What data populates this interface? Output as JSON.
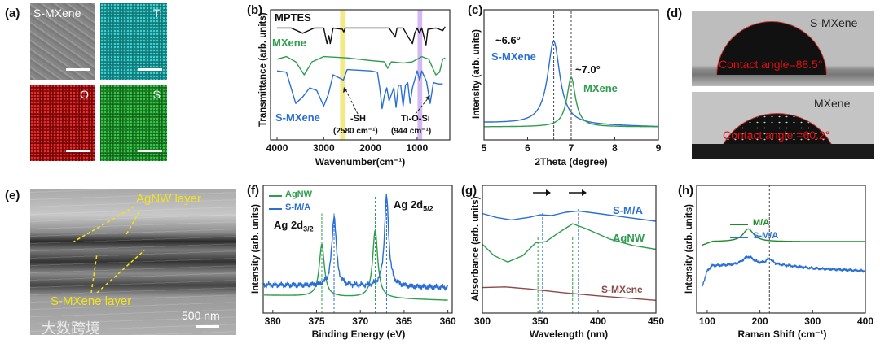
{
  "panel_labels": {
    "a": "(a)",
    "b": "(b)",
    "c": "(c)",
    "d": "(d)",
    "e": "(e)",
    "f": "(f)",
    "g": "(g)",
    "h": "(h)"
  },
  "images": {
    "a": {
      "tiles": [
        "S-MXene",
        "Ti",
        "O",
        "S"
      ],
      "colors": [
        "#8a8a8a",
        "#1fa8a8",
        "#b41414",
        "#1f9a2a"
      ]
    },
    "d": {
      "top": {
        "sample": "S-MXene",
        "angle_text": "Contact angle=88.5°"
      },
      "bottom": {
        "sample": "MXene",
        "angle_text": "Contact angle =60.2°"
      }
    },
    "e": {
      "agnw_label": "AgNW layer",
      "smxene_label": "S-MXene layer",
      "scale": "500 nm",
      "watermark": "大数跨境"
    }
  },
  "chart_data": [
    {
      "type": "line",
      "panel": "b",
      "xlabel": "Wavenumber(cm⁻¹)",
      "ylabel": "Transmittance (arb. units)",
      "xlim": [
        4140,
        300
      ],
      "ylim": [
        0,
        1
      ],
      "xticks": [
        4000,
        3000,
        2000,
        1000
      ],
      "bands": [
        {
          "from": 2650,
          "to": 2530,
          "color": "#f0e46a"
        },
        {
          "from": 990,
          "to": 890,
          "color": "#c9a6ee"
        }
      ],
      "annotations": [
        "MPTES",
        "MXene",
        "S-MXene",
        "-SH",
        "(2580 cm⁻¹)",
        "Ti-O-Si",
        "(944 cm⁻¹)"
      ],
      "series": [
        {
          "name": "MPTES",
          "color": "#111111",
          "points": [
            [
              4000,
              0.86
            ],
            [
              3700,
              0.86
            ],
            [
              3450,
              0.82
            ],
            [
              3200,
              0.86
            ],
            [
              3000,
              0.86
            ],
            [
              2930,
              0.74
            ],
            [
              2890,
              0.8
            ],
            [
              2860,
              0.74
            ],
            [
              2800,
              0.86
            ],
            [
              2600,
              0.85
            ],
            [
              2570,
              0.83
            ],
            [
              2540,
              0.86
            ],
            [
              1600,
              0.86
            ],
            [
              1470,
              0.79
            ],
            [
              1430,
              0.86
            ],
            [
              1300,
              0.86
            ],
            [
              1190,
              0.79
            ],
            [
              1100,
              0.74
            ],
            [
              1050,
              0.82
            ],
            [
              1000,
              0.86
            ],
            [
              950,
              0.82
            ],
            [
              900,
              0.86
            ],
            [
              810,
              0.73
            ],
            [
              770,
              0.85
            ],
            [
              600,
              0.86
            ],
            [
              450,
              0.84
            ],
            [
              400,
              0.87
            ]
          ]
        },
        {
          "name": "MXene",
          "color": "#2e9e4e",
          "points": [
            [
              4000,
              0.62
            ],
            [
              3800,
              0.64
            ],
            [
              3600,
              0.6
            ],
            [
              3420,
              0.5
            ],
            [
              3250,
              0.6
            ],
            [
              3000,
              0.64
            ],
            [
              2500,
              0.63
            ],
            [
              2000,
              0.61
            ],
            [
              1700,
              0.6
            ],
            [
              1630,
              0.55
            ],
            [
              1550,
              0.6
            ],
            [
              1300,
              0.59
            ],
            [
              1100,
              0.6
            ],
            [
              900,
              0.64
            ],
            [
              750,
              0.62
            ],
            [
              600,
              0.5
            ],
            [
              520,
              0.52
            ],
            [
              450,
              0.62
            ],
            [
              400,
              0.63
            ]
          ]
        },
        {
          "name": "S-MXene",
          "color": "#2a6fd6",
          "points": [
            [
              4000,
              0.53
            ],
            [
              3800,
              0.52
            ],
            [
              3600,
              0.28
            ],
            [
              3450,
              0.33
            ],
            [
              3300,
              0.4
            ],
            [
              3150,
              0.38
            ],
            [
              3000,
              0.26
            ],
            [
              2900,
              0.35
            ],
            [
              2800,
              0.5
            ],
            [
              2580,
              0.46
            ],
            [
              2500,
              0.54
            ],
            [
              2000,
              0.53
            ],
            [
              1850,
              0.52
            ],
            [
              1800,
              0.4
            ],
            [
              1750,
              0.24
            ],
            [
              1700,
              0.34
            ],
            [
              1650,
              0.4
            ],
            [
              1600,
              0.3
            ],
            [
              1500,
              0.4
            ],
            [
              1450,
              0.25
            ],
            [
              1400,
              0.42
            ],
            [
              1350,
              0.42
            ],
            [
              1300,
              0.26
            ],
            [
              1250,
              0.42
            ],
            [
              1200,
              0.44
            ],
            [
              1150,
              0.28
            ],
            [
              1100,
              0.4
            ],
            [
              1000,
              0.53
            ],
            [
              944,
              0.46
            ],
            [
              900,
              0.53
            ],
            [
              800,
              0.45
            ],
            [
              720,
              0.28
            ],
            [
              650,
              0.44
            ],
            [
              550,
              0.43
            ],
            [
              450,
              0.43
            ]
          ]
        }
      ]
    },
    {
      "type": "line",
      "panel": "c",
      "xlabel": "2Theta (degree)",
      "ylabel": "Intensity (arb. units)",
      "xlim": [
        5,
        9
      ],
      "ylim": [
        0,
        1
      ],
      "xticks": [
        5,
        6,
        7,
        8,
        9
      ],
      "vlines": [
        {
          "x": 6.6,
          "color": "#444444"
        },
        {
          "x": 7.0,
          "color": "#444444"
        }
      ],
      "annotations": [
        "~6.6°",
        "S-MXene",
        "~7.0°",
        "MXene"
      ],
      "series": [
        {
          "name": "S-MXene",
          "color": "#2a6fd6",
          "baseline": [
            [
              5,
              0.13
            ],
            [
              9,
              0.1
            ]
          ],
          "peaks": [
            {
              "center": 6.6,
              "height": 0.64,
              "hwhm": 0.17
            }
          ]
        },
        {
          "name": "MXene",
          "color": "#2e9e4e",
          "baseline": [
            [
              5,
              0.1
            ],
            [
              9,
              0.1
            ]
          ],
          "peaks": [
            {
              "center": 7.0,
              "height": 0.38,
              "hwhm": 0.12
            }
          ]
        }
      ]
    },
    {
      "type": "line",
      "panel": "f",
      "xlabel": "Binding Energy (eV)",
      "ylabel": "Intensity (arb. units)",
      "xlim": [
        381.1,
        359.5
      ],
      "ylim": [
        0,
        1
      ],
      "xticks": [
        380,
        375,
        370,
        365,
        360
      ],
      "legend": [
        "AgNW",
        "S-M/A"
      ],
      "annotations": [
        "Ag 2d",
        "3/2",
        "Ag 2d",
        "5/2"
      ],
      "vlines": [
        {
          "x": 374.4,
          "color": "#2e9e4e",
          "top": 0.78
        },
        {
          "x": 373.0,
          "color": "#2a6fd6",
          "top": 0.78
        },
        {
          "x": 368.3,
          "color": "#2e9e4e",
          "top": 0.92
        },
        {
          "x": 367.0,
          "color": "#2a6fd6",
          "top": 0.92
        }
      ],
      "series": [
        {
          "name": "AgNW",
          "color": "#2e9e4e",
          "baseline": [
            [
              381,
              0.14
            ],
            [
              369,
              0.12
            ],
            [
              360,
              0.1
            ]
          ],
          "peaks": [
            {
              "center": 374.4,
              "height": 0.41,
              "hwhm": 0.35
            },
            {
              "center": 368.3,
              "height": 0.53,
              "hwhm": 0.35
            }
          ]
        },
        {
          "name": "S-M/A",
          "color": "#2a6fd6",
          "noise": 0.025,
          "baseline": [
            [
              381,
              0.22
            ],
            [
              360,
              0.2
            ]
          ],
          "peaks": [
            {
              "center": 373.0,
              "height": 0.55,
              "hwhm": 0.3
            },
            {
              "center": 367.0,
              "height": 0.7,
              "hwhm": 0.3
            }
          ]
        }
      ]
    },
    {
      "type": "line",
      "panel": "g",
      "xlabel": "Wavelength (nm)",
      "ylabel": "Absorbance (arb. units)",
      "xlim": [
        300,
        450
      ],
      "ylim": [
        0,
        1
      ],
      "xticks": [
        300,
        350,
        400,
        450
      ],
      "annotations": [
        "S-M/A",
        "AgNW",
        "S-MXene"
      ],
      "vlines": [
        {
          "x": 348,
          "color": "#2e9e4e",
          "top": 0.6
        },
        {
          "x": 352,
          "color": "#2a6fd6",
          "top": 0.8
        },
        {
          "x": 378,
          "color": "#2e9e4e",
          "top": 0.6
        },
        {
          "x": 383,
          "color": "#2a6fd6",
          "top": 0.82
        }
      ],
      "series": [
        {
          "name": "S-M/A",
          "color": "#2a6fd6",
          "points": [
            [
              300,
              0.78
            ],
            [
              312,
              0.75
            ],
            [
              325,
              0.73
            ],
            [
              340,
              0.75
            ],
            [
              350,
              0.77
            ],
            [
              360,
              0.765
            ],
            [
              372,
              0.79
            ],
            [
              383,
              0.8
            ],
            [
              400,
              0.78
            ],
            [
              425,
              0.75
            ],
            [
              450,
              0.72
            ]
          ]
        },
        {
          "name": "AgNW",
          "color": "#2e9e4e",
          "points": [
            [
              300,
              0.54
            ],
            [
              310,
              0.45
            ],
            [
              322,
              0.4
            ],
            [
              335,
              0.45
            ],
            [
              346,
              0.55
            ],
            [
              355,
              0.56
            ],
            [
              366,
              0.63
            ],
            [
              378,
              0.7
            ],
            [
              390,
              0.66
            ],
            [
              410,
              0.58
            ],
            [
              430,
              0.53
            ],
            [
              450,
              0.5
            ]
          ]
        },
        {
          "name": "S-MXene",
          "color": "#8a4a4a",
          "points": [
            [
              300,
              0.2
            ],
            [
              320,
              0.205
            ],
            [
              340,
              0.19
            ],
            [
              370,
              0.16
            ],
            [
              400,
              0.135
            ],
            [
              450,
              0.1
            ]
          ]
        }
      ]
    },
    {
      "type": "line",
      "panel": "h",
      "xlabel": "Raman Shift (cm⁻¹)",
      "ylabel": "Intensity (arb. units)",
      "xlim": [
        80,
        400
      ],
      "ylim": [
        0,
        1
      ],
      "xticks": [
        100,
        200,
        300,
        400
      ],
      "legend": [
        "M/A",
        "S-M/A"
      ],
      "vlines": [
        {
          "x": 218,
          "color": "#444444"
        }
      ],
      "series": [
        {
          "name": "M/A",
          "color": "#1f8a2a",
          "baseline": [
            [
              90,
              0.53
            ],
            [
              110,
              0.56
            ],
            [
              400,
              0.56
            ]
          ],
          "peaks": [
            {
              "center": 178,
              "height": 0.1,
              "hwhm": 12
            }
          ]
        },
        {
          "name": "S-M/A",
          "color": "#2a6fd6",
          "noise": 0.012,
          "baseline": [
            [
              90,
              0.2
            ],
            [
              100,
              0.33
            ],
            [
              110,
              0.37
            ],
            [
              250,
              0.37
            ],
            [
              300,
              0.35
            ],
            [
              400,
              0.33
            ]
          ],
          "peaks": [
            {
              "center": 178,
              "height": 0.07,
              "hwhm": 14
            },
            {
              "center": 218,
              "height": 0.05,
              "hwhm": 8
            }
          ]
        }
      ]
    }
  ]
}
